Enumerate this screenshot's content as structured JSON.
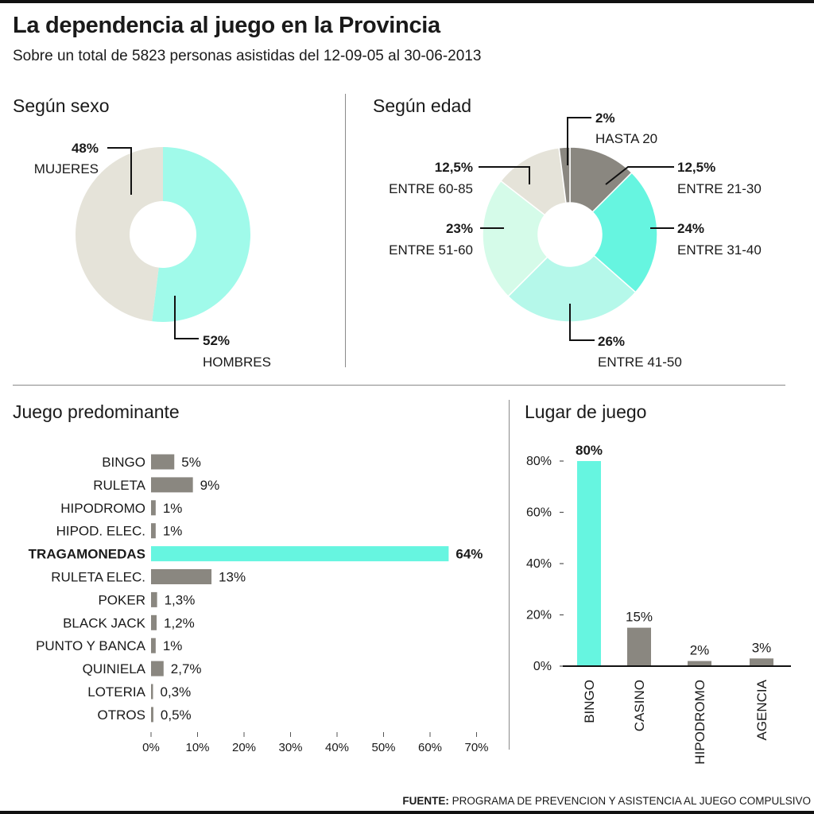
{
  "header": {
    "title": "La dependencia al juego en la Provincia",
    "subtitle": "Sobre un total de 5823 personas asistidas del 12-09-05 al 30-06-2013"
  },
  "colors": {
    "aqua": "#66f5e0",
    "mint": "#a0faea",
    "pale_mint": "#d5fbe9",
    "light_teal": "#b5f8ea",
    "beige": "#e5e3d9",
    "gray": "#8a8780",
    "axis": "#555555"
  },
  "chart_data": [
    {
      "type": "pie",
      "title": "Según sexo",
      "slices": [
        {
          "pct_label": "52%",
          "label": "HOMBRES",
          "value": 52,
          "color": "#a0faea"
        },
        {
          "pct_label": "48%",
          "label": "MUJERES",
          "value": 48,
          "color": "#e5e3d9"
        }
      ]
    },
    {
      "type": "pie",
      "title": "Según edad",
      "slices": [
        {
          "pct_label": "12,5%",
          "label": "ENTRE 21-30",
          "value": 12.5,
          "color": "#8a8780"
        },
        {
          "pct_label": "24%",
          "label": "ENTRE 31-40",
          "value": 24,
          "color": "#66f5e0"
        },
        {
          "pct_label": "26%",
          "label": "ENTRE 41-50",
          "value": 26,
          "color": "#b5f8ea"
        },
        {
          "pct_label": "23%",
          "label": "ENTRE 51-60",
          "value": 23,
          "color": "#d5fbe9"
        },
        {
          "pct_label": "12,5%",
          "label": "ENTRE 60-85",
          "value": 12.5,
          "color": "#e5e3d9"
        },
        {
          "pct_label": "2%",
          "label": "HASTA 20",
          "value": 2,
          "color": "#8a8780"
        }
      ]
    },
    {
      "type": "bar",
      "orientation": "horizontal",
      "title": "Juego predominante",
      "categories": [
        "BINGO",
        "RULETA",
        "HIPODROMO",
        "HIPOD. ELEC.",
        "TRAGAMONEDAS",
        "RULETA ELEC.",
        "POKER",
        "BLACK JACK",
        "PUNTO Y BANCA",
        "QUINIELA",
        "LOTERIA",
        "OTROS"
      ],
      "values": [
        5,
        9,
        1,
        1,
        64,
        13,
        1.3,
        1.2,
        1,
        2.7,
        0.3,
        0.5
      ],
      "value_labels": [
        "5%",
        "9%",
        "1%",
        "1%",
        "64%",
        "13%",
        "1,3%",
        "1,2%",
        "1%",
        "2,7%",
        "0,3%",
        "0,5%"
      ],
      "highlight": "TRAGAMONEDAS",
      "xlim": [
        0,
        70
      ],
      "xticks": [
        0,
        10,
        20,
        30,
        40,
        50,
        60,
        70
      ],
      "xtick_labels": [
        "0%",
        "10%",
        "20%",
        "30%",
        "40%",
        "50%",
        "60%",
        "70%"
      ]
    },
    {
      "type": "bar",
      "orientation": "vertical",
      "title": "Lugar de juego",
      "categories": [
        "BINGO",
        "CASINO",
        "HIPODROMO",
        "AGENCIA"
      ],
      "values": [
        80,
        15,
        2,
        3
      ],
      "value_labels": [
        "80%",
        "15%",
        "2%",
        "3%"
      ],
      "highlight": "BINGO",
      "ylim": [
        0,
        80
      ],
      "yticks": [
        0,
        20,
        40,
        60,
        80
      ],
      "ytick_labels": [
        "0%",
        "20%",
        "40%",
        "60%",
        "80%"
      ]
    }
  ],
  "source": {
    "label": "FUENTE:",
    "text": "PROGRAMA DE PREVENCION Y ASISTENCIA AL JUEGO COMPULSIVO"
  }
}
